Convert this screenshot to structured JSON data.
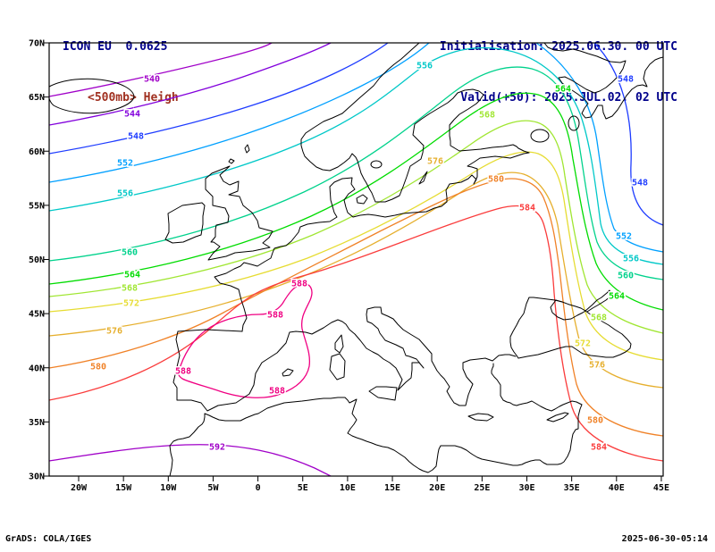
{
  "header": {
    "model": "ICON EU  0.0625",
    "field": "<500mb> Heigh",
    "init": "Initialisation: 2025.06.30. 00 UTC",
    "valid": "Valid(+50): 2025.JUL.02. 02 UTC"
  },
  "footer": {
    "left": "GrADS: COLA/IGES",
    "right": "2025-06-30-05:14"
  },
  "colors": {
    "header_left": "#00008b",
    "header_field": "#a03020",
    "header_right": "#00008b",
    "frame": "#000000",
    "coast": "#000000",
    "background": "#ffffff"
  },
  "axes": {
    "lat_labels": [
      "70N",
      "65N",
      "60N",
      "55N",
      "50N",
      "45N",
      "40N",
      "35N",
      "30N"
    ],
    "lon_labels": [
      "20W",
      "15W",
      "10W",
      "5W",
      "0",
      "5E",
      "10E",
      "15E",
      "20E",
      "25E",
      "30E",
      "35E",
      "40E",
      "45E"
    ]
  },
  "chart_data": {
    "type": "contour-map",
    "field": "500mb geopotential height",
    "region": {
      "lat_range": [
        "30N",
        "70N"
      ],
      "lon_range": [
        "20W",
        "45E"
      ]
    },
    "levels": [
      540,
      544,
      548,
      552,
      556,
      560,
      564,
      568,
      572,
      576,
      580,
      584,
      588,
      592
    ],
    "contours": [
      {
        "level": 540,
        "color": "#a000c8",
        "labels": [
          [
            170,
            88
          ]
        ]
      },
      {
        "level": 544,
        "color": "#8200dc",
        "labels": [
          [
            148,
            127
          ]
        ]
      },
      {
        "level": 548,
        "color": "#1e3cff",
        "labels": [
          [
            152,
            152
          ],
          [
            716,
            204
          ],
          [
            700,
            88
          ]
        ]
      },
      {
        "level": 552,
        "color": "#00a0ff",
        "labels": [
          [
            140,
            182
          ],
          [
            698,
            264
          ]
        ]
      },
      {
        "level": 556,
        "color": "#00c8c8",
        "labels": [
          [
            140,
            216
          ],
          [
            475,
            73
          ],
          [
            706,
            289
          ]
        ]
      },
      {
        "level": 560,
        "color": "#00d28c",
        "labels": [
          [
            145,
            282
          ],
          [
            700,
            308
          ]
        ]
      },
      {
        "level": 564,
        "color": "#00dc00",
        "labels": [
          [
            148,
            307
          ],
          [
            630,
            99
          ],
          [
            690,
            331
          ]
        ]
      },
      {
        "level": 568,
        "color": "#a0e632",
        "labels": [
          [
            145,
            322
          ],
          [
            545,
            128
          ],
          [
            670,
            355
          ]
        ]
      },
      {
        "level": 572,
        "color": "#e6dc32",
        "labels": [
          [
            147,
            339
          ],
          [
            652,
            384
          ]
        ]
      },
      {
        "level": 576,
        "color": "#e6af2d",
        "labels": [
          [
            128,
            370
          ],
          [
            487,
            180
          ],
          [
            668,
            408
          ]
        ]
      },
      {
        "level": 580,
        "color": "#f08228",
        "labels": [
          [
            110,
            410
          ],
          [
            555,
            200
          ],
          [
            666,
            470
          ]
        ]
      },
      {
        "level": 584,
        "color": "#fa3c3c",
        "labels": [
          [
            590,
            232
          ],
          [
            670,
            500
          ]
        ]
      },
      {
        "level": 588,
        "color": "#f00082",
        "labels": [
          [
            205,
            415
          ],
          [
            308,
            352
          ],
          [
            335,
            317
          ],
          [
            310,
            437
          ]
        ]
      },
      {
        "level": 592,
        "color": "#a000c8",
        "labels": [
          [
            243,
            500
          ]
        ]
      }
    ]
  }
}
